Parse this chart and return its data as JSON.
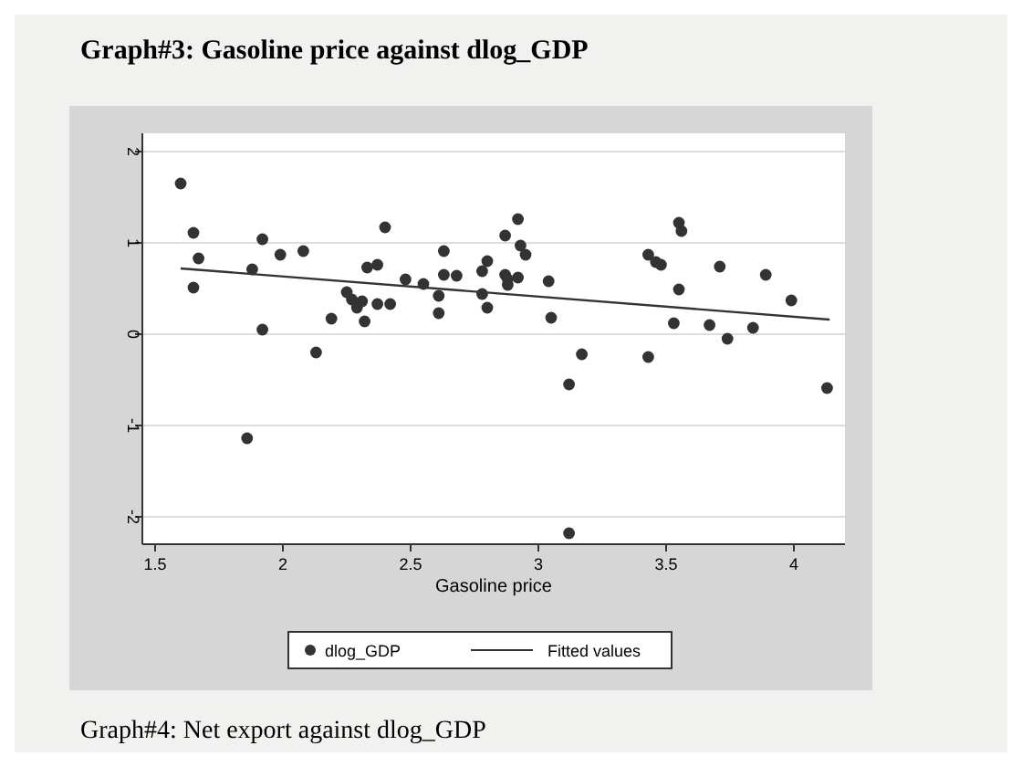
{
  "chart_data": {
    "type": "scatter",
    "title": "Graph#3: Gasoline price against dlog_GDP",
    "xlabel": "Gasoline price",
    "annotations": [
      "Graph#4: Net export against dlog_GDP"
    ],
    "xlim": [
      1.45,
      4.2
    ],
    "xticks": [
      1.5,
      2,
      2.5,
      3,
      3.5,
      4
    ],
    "ylim": [
      -2.3,
      2.2
    ],
    "yticks": [
      -2,
      -1,
      0,
      1,
      2
    ],
    "grid": "y",
    "legend": "bottom",
    "series": [
      {
        "name": "dlog_GDP",
        "type": "scatter",
        "marker": "circle",
        "color": "#333333",
        "x": [
          1.6,
          1.65,
          1.67,
          1.65,
          1.88,
          1.92,
          1.92,
          1.86,
          1.99,
          2.08,
          2.13,
          2.19,
          2.25,
          2.27,
          2.29,
          2.31,
          2.32,
          2.33,
          2.37,
          2.37,
          2.4,
          2.42,
          2.48,
          2.55,
          2.61,
          2.61,
          2.63,
          2.63,
          2.68,
          2.78,
          2.8,
          2.78,
          2.8,
          2.87,
          2.92,
          2.93,
          2.95,
          2.87,
          2.88,
          2.92,
          2.88,
          3.04,
          3.05,
          3.17,
          3.12,
          3.12,
          3.43,
          3.46,
          3.48,
          3.43,
          3.55,
          3.56,
          3.55,
          3.53,
          3.71,
          3.67,
          3.74,
          3.84,
          3.89,
          3.99,
          4.13
        ],
        "values": [
          1.65,
          1.11,
          0.83,
          0.51,
          0.71,
          1.04,
          0.05,
          -1.14,
          0.87,
          0.91,
          -0.2,
          0.17,
          0.46,
          0.38,
          0.29,
          0.36,
          0.14,
          0.73,
          0.76,
          0.33,
          1.17,
          0.33,
          0.6,
          0.55,
          0.42,
          0.23,
          0.91,
          0.65,
          0.64,
          0.69,
          0.8,
          0.44,
          0.29,
          1.08,
          1.26,
          0.97,
          0.87,
          0.65,
          0.6,
          0.62,
          0.54,
          0.58,
          0.18,
          -0.22,
          -0.55,
          -2.18,
          0.87,
          0.79,
          0.76,
          -0.25,
          1.22,
          1.13,
          0.49,
          0.12,
          0.74,
          0.1,
          -0.05,
          0.07,
          0.65,
          0.37,
          -0.59
        ]
      },
      {
        "name": "Fitted values",
        "type": "line",
        "color": "#333333",
        "x": [
          1.6,
          4.14
        ],
        "values": [
          0.72,
          0.16
        ]
      }
    ]
  }
}
